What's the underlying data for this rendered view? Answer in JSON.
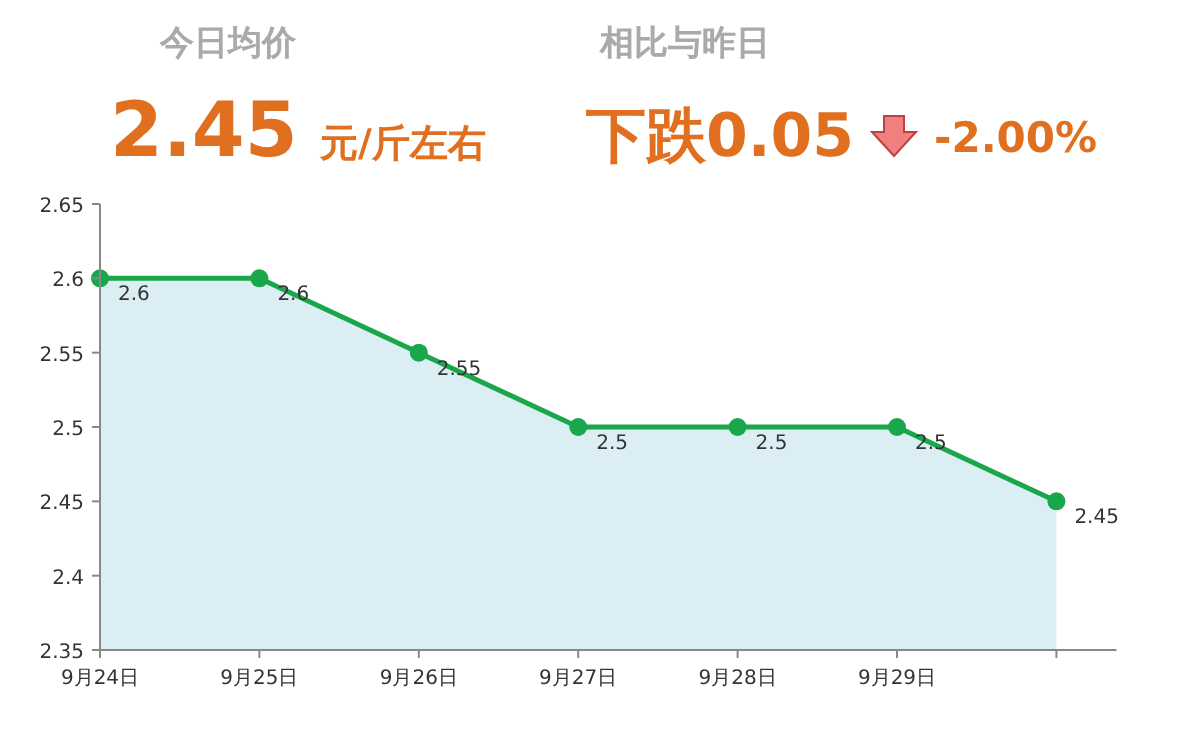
{
  "chart_data": {
    "type": "area",
    "annotations": [
      "今日均价",
      "2.45",
      "元/斤左右",
      "相比与昨日",
      "下跌0.05",
      "-2.00%"
    ],
    "categories": [
      "9月24日",
      "9月25日",
      "9月26日",
      "9月27日",
      "9月28日",
      "9月29日",
      null
    ],
    "series": [
      {
        "color": "#1aa64a",
        "values": [
          2.6,
          2.6,
          2.55,
          2.5,
          2.5,
          2.5,
          2.45
        ]
      }
    ],
    "ylim": [
      2.35,
      2.65
    ],
    "yticks": [
      2.35,
      2.4,
      2.45,
      2.5,
      2.55,
      2.6,
      2.65
    ],
    "marker": "circle",
    "data_labels": true
  }
}
